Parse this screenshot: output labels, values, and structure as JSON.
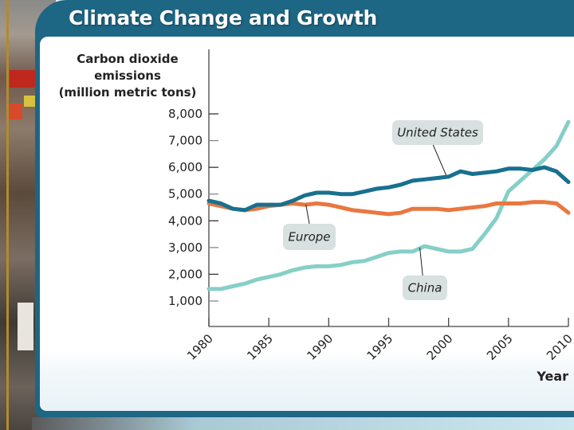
{
  "slide": {
    "title": "Climate Change and Growth"
  },
  "chart_data": {
    "type": "line",
    "title": "Climate Change and Growth",
    "ylabel": "Carbon dioxide emissions (million metric tons)",
    "ylabel_lines": [
      "Carbon dioxide",
      "emissions",
      "(million metric tons)"
    ],
    "xlabel": "Year",
    "xlim": [
      1980,
      2010
    ],
    "ylim": [
      0,
      8000
    ],
    "yticks": [
      1000,
      2000,
      3000,
      4000,
      5000,
      6000,
      7000,
      8000
    ],
    "ytick_labels": [
      "1,000",
      "2,000",
      "3,000",
      "4,000",
      "5,000",
      "6,000",
      "7,000",
      "8,000"
    ],
    "xticks": [
      1980,
      1985,
      1990,
      1995,
      2000,
      2005,
      2010
    ],
    "xtick_labels": [
      "1980",
      "1985",
      "1990",
      "1995",
      "2000",
      "2005",
      "2010"
    ],
    "grid": false,
    "legend": "inline-callouts",
    "series": [
      {
        "name": "United States",
        "color": "#19708f",
        "x": [
          1980,
          1981,
          1982,
          1983,
          1984,
          1985,
          1986,
          1987,
          1988,
          1989,
          1990,
          1991,
          1992,
          1993,
          1994,
          1995,
          1996,
          1997,
          1998,
          1999,
          2000,
          2001,
          2002,
          2003,
          2004,
          2005,
          2006,
          2007,
          2008,
          2009,
          2010
        ],
        "values": [
          4750,
          4650,
          4450,
          4400,
          4600,
          4600,
          4600,
          4750,
          4950,
          5050,
          5050,
          5000,
          5000,
          5100,
          5200,
          5250,
          5350,
          5500,
          5550,
          5600,
          5650,
          5850,
          5750,
          5800,
          5850,
          5950,
          5950,
          5900,
          6000,
          5850,
          5450
        ]
      },
      {
        "name": "Europe",
        "color": "#e9773f",
        "x": [
          1980,
          1981,
          1982,
          1983,
          1984,
          1985,
          1986,
          1987,
          1988,
          1989,
          1990,
          1991,
          1992,
          1993,
          1994,
          1995,
          1996,
          1997,
          1998,
          1999,
          2000,
          2001,
          2002,
          2003,
          2004,
          2005,
          2006,
          2007,
          2008,
          2009,
          2010
        ],
        "values": [
          4650,
          4550,
          4450,
          4400,
          4450,
          4550,
          4600,
          4650,
          4600,
          4650,
          4600,
          4500,
          4400,
          4350,
          4300,
          4250,
          4300,
          4450,
          4450,
          4450,
          4400,
          4450,
          4500,
          4550,
          4650,
          4650,
          4650,
          4700,
          4700,
          4650,
          4300
        ]
      },
      {
        "name": "China",
        "color": "#86cfc7",
        "x": [
          1980,
          1981,
          1982,
          1983,
          1984,
          1985,
          1986,
          1987,
          1988,
          1989,
          1990,
          1991,
          1992,
          1993,
          1994,
          1995,
          1996,
          1997,
          1998,
          1999,
          2000,
          2001,
          2002,
          2003,
          2004,
          2005,
          2006,
          2007,
          2008,
          2009,
          2010
        ],
        "values": [
          1450,
          1450,
          1550,
          1650,
          1800,
          1900,
          2000,
          2150,
          2250,
          2300,
          2300,
          2350,
          2450,
          2500,
          2650,
          2800,
          2850,
          2850,
          3050,
          2950,
          2850,
          2850,
          2950,
          3500,
          4100,
          5100,
          5500,
          5900,
          6300,
          6800,
          7700
        ]
      }
    ],
    "annotations": [
      {
        "text": "United States",
        "series": "United States",
        "anchor_x": 1999.8,
        "anchor_y": 5700
      },
      {
        "text": "Europe",
        "series": "Europe",
        "anchor_x": 1988.1,
        "anchor_y": 4600
      },
      {
        "text": "China",
        "series": "China",
        "anchor_x": 1997.6,
        "anchor_y": 3000
      }
    ]
  }
}
